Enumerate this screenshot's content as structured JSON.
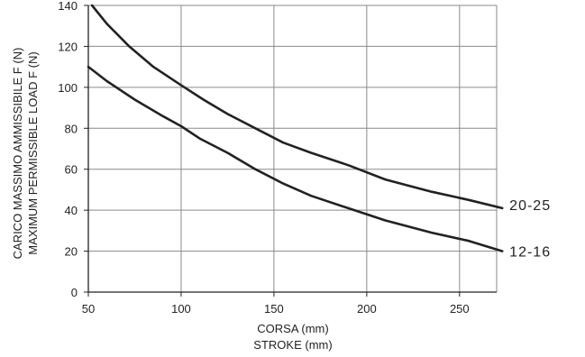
{
  "chart_data": {
    "type": "line",
    "title": "",
    "xlabel": [
      "CORSA (mm)",
      "STROKE (mm)"
    ],
    "ylabel": [
      "CARICO MASSIMO AMMISSIBILE F (N)",
      "MAXIMUM PERMISSIBLE LOAD F (N)"
    ],
    "xlim": [
      50,
      270
    ],
    "ylim": [
      0,
      140
    ],
    "xticks": [
      50,
      100,
      150,
      200,
      250
    ],
    "yticks": [
      0,
      20,
      40,
      60,
      80,
      100,
      120,
      140
    ],
    "grid": true,
    "colors": {
      "grid": "#8a8a8a",
      "axis": "#222222",
      "line": "#222222"
    },
    "series": [
      {
        "name": "20-25",
        "x": [
          52,
          60,
          72,
          85,
          100,
          112,
          125,
          140,
          155,
          170,
          190,
          210,
          235,
          255,
          273
        ],
        "y": [
          140,
          131,
          120,
          110,
          101,
          94,
          87,
          80,
          73,
          68,
          62,
          55,
          49,
          45,
          41
        ]
      },
      {
        "name": "12-16",
        "x": [
          50,
          60,
          75,
          90,
          100,
          110,
          125,
          140,
          155,
          170,
          190,
          210,
          235,
          255,
          273
        ],
        "y": [
          110,
          103,
          94,
          86,
          81,
          75,
          68,
          60,
          53,
          47,
          41,
          35,
          29,
          25,
          20
        ]
      }
    ]
  }
}
